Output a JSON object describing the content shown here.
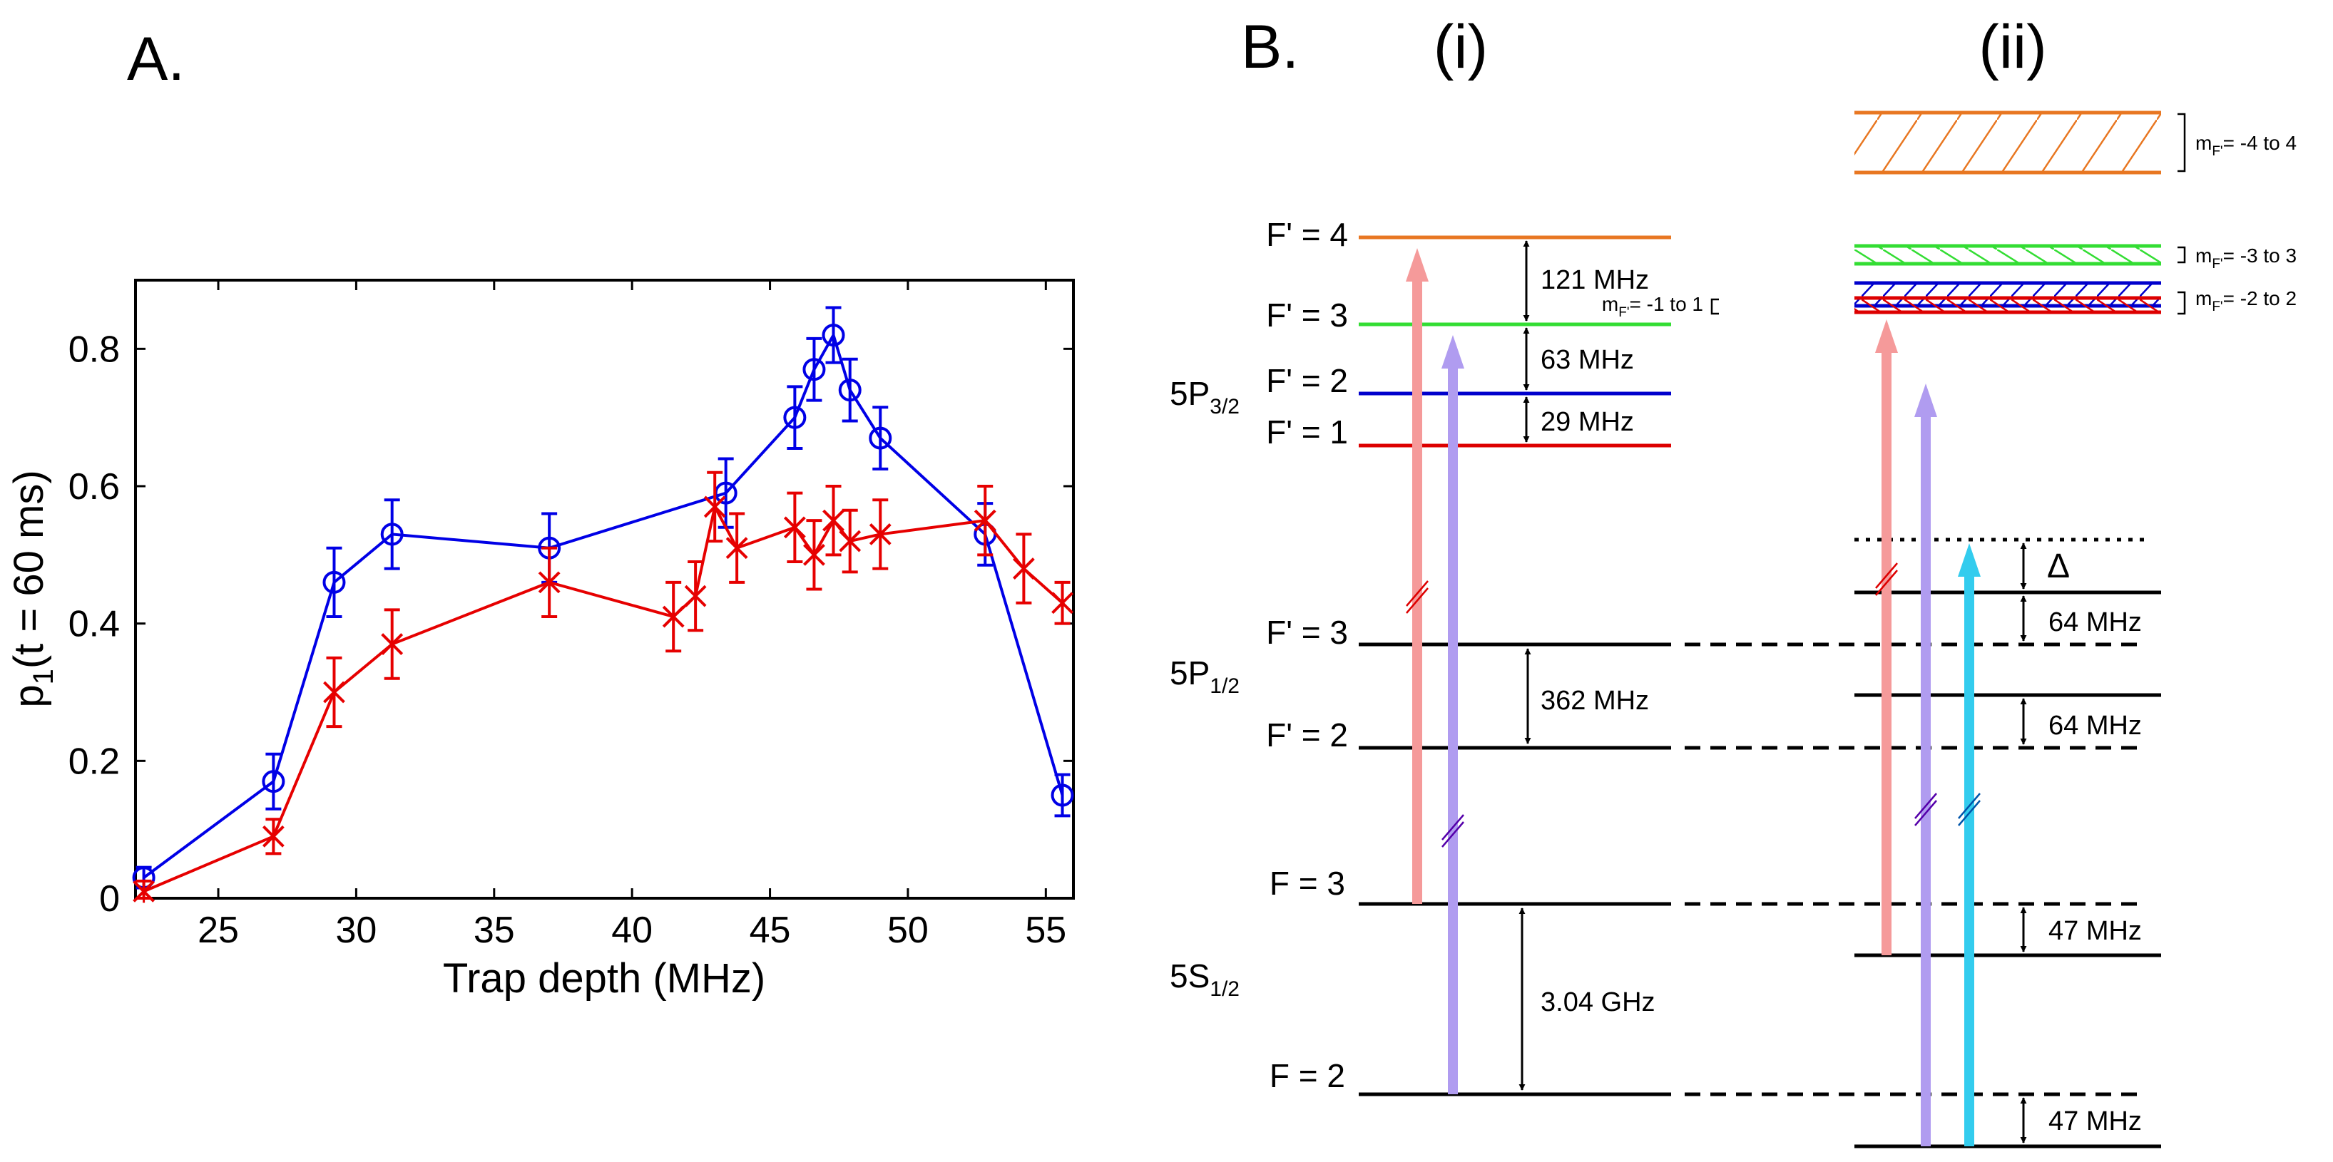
{
  "panel_a": {
    "label": "A.",
    "chart_data": {
      "type": "line",
      "xlabel": "Trap depth (MHz)",
      "ylabel_main": "p",
      "ylabel_sub": "1",
      "ylabel_rest": "(t = 60 ms)",
      "xlim": [
        22,
        56
      ],
      "ylim": [
        0,
        0.9
      ],
      "x_ticks": [
        25,
        30,
        35,
        40,
        45,
        50,
        55
      ],
      "y_ticks": [
        0,
        0.2,
        0.4,
        0.6,
        0.8
      ],
      "y_tick_labels": [
        "0",
        "0.2",
        "0.4",
        "0.6",
        "0.8"
      ],
      "series": [
        {
          "name": "blue circles",
          "color": "#0000e6",
          "marker": "circle",
          "x": [
            22.3,
            27.0,
            29.2,
            31.3,
            37.0,
            43.4,
            45.9,
            46.6,
            47.3,
            47.9,
            49.0,
            52.8,
            55.6
          ],
          "y": [
            0.03,
            0.17,
            0.46,
            0.53,
            0.51,
            0.59,
            0.7,
            0.77,
            0.82,
            0.74,
            0.67,
            0.53,
            0.15
          ],
          "err": [
            0.015,
            0.04,
            0.05,
            0.05,
            0.05,
            0.05,
            0.045,
            0.045,
            0.04,
            0.045,
            0.045,
            0.045,
            0.03
          ]
        },
        {
          "name": "red crosses",
          "color": "#e60000",
          "marker": "x",
          "x": [
            22.3,
            27.0,
            29.2,
            31.3,
            37.0,
            41.5,
            42.3,
            43.0,
            43.8,
            45.9,
            46.6,
            47.3,
            47.9,
            49.0,
            52.8,
            54.2,
            55.6
          ],
          "y": [
            0.01,
            0.09,
            0.3,
            0.37,
            0.46,
            0.41,
            0.44,
            0.57,
            0.51,
            0.54,
            0.5,
            0.55,
            0.52,
            0.53,
            0.55,
            0.48,
            0.43
          ],
          "err": [
            0.015,
            0.025,
            0.05,
            0.05,
            0.05,
            0.05,
            0.05,
            0.05,
            0.05,
            0.05,
            0.05,
            0.05,
            0.045,
            0.05,
            0.05,
            0.05,
            0.03
          ]
        }
      ]
    }
  },
  "panel_b": {
    "label": "B.",
    "sub_i": "(i)",
    "sub_ii": "(ii)",
    "level_5p32": {
      "main": "5P",
      "sub": "3/2"
    },
    "level_5p12": {
      "main": "5P",
      "sub": "1/2"
    },
    "level_5s12": {
      "main": "5S",
      "sub": "1/2"
    },
    "left_labels": {
      "fp4": "F' = 4",
      "fp3": "F' = 3",
      "fp2": "F' = 2",
      "fp1": "F' = 1",
      "fp3b": "F' = 3",
      "fp2b": "F' = 2",
      "f3": "F = 3",
      "f2": "F = 2"
    },
    "spacings": {
      "s121": "121 MHz",
      "s63": "63 MHz",
      "s29": "29 MHz",
      "s362": "362 MHz",
      "s304": "3.04 GHz",
      "s64a": "64 MHz",
      "s64b": "64 MHz",
      "s47a": "47 MHz",
      "s47b": "47 MHz",
      "delta": "Δ"
    },
    "mf_labels": {
      "m4": {
        "pre": "m",
        "sub": "F'",
        "post": "= -4 to 4"
      },
      "m3": {
        "pre": "m",
        "sub": "F'",
        "post": "= -3 to 3"
      },
      "m2": {
        "pre": "m",
        "sub": "F'",
        "post": "= -2 to 2"
      },
      "m1": {
        "pre": "m",
        "sub": "F'",
        "post": "= -1 to 1"
      }
    },
    "colors": {
      "f4": "#e87722",
      "f3": "#33dd33",
      "f2": "#0000cc",
      "f1": "#dd0000",
      "arrow_red": "#f59a9a",
      "arrow_purple": "#b09cf0",
      "arrow_cyan": "#33ccee"
    }
  }
}
